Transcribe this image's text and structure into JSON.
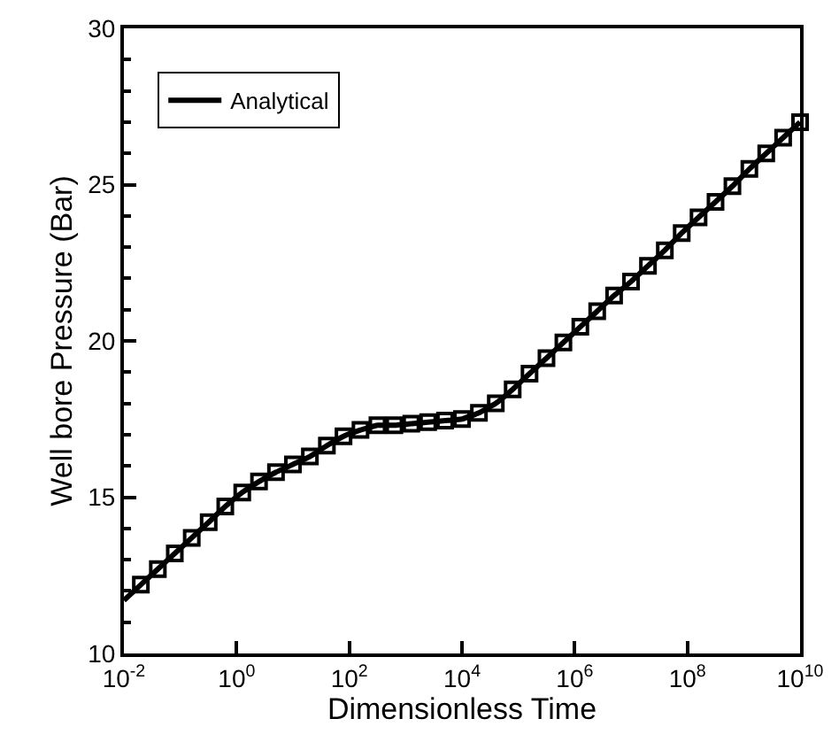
{
  "chart_data": {
    "type": "line",
    "xlabel": "Dimensionless Time",
    "ylabel": "Well bore Pressure (Bar)",
    "log": "x",
    "xlim": [
      0.01,
      10000000000
    ],
    "ylim": [
      10,
      30
    ],
    "xticks": [
      {
        "value": 0.01,
        "label": "10$^{-2}$"
      },
      {
        "value": 1,
        "label": "10$^{0}$"
      },
      {
        "value": 100,
        "label": "10$^{2}$"
      },
      {
        "value": 10000,
        "label": "10$^{4}$"
      },
      {
        "value": 1000000,
        "label": "10$^{6}$"
      },
      {
        "value": 100000000,
        "label": "10$^{8}$"
      },
      {
        "value": 10000000000,
        "label": "10$^{10}$"
      }
    ],
    "yticks": [
      10,
      15,
      20,
      25,
      30
    ],
    "legend": "top left",
    "series": [
      {
        "name": "Analytical",
        "color": "#000000",
        "marker": "none",
        "line_style": "solid",
        "x": [
          0.01,
          0.02,
          0.04,
          0.08,
          0.16,
          0.32,
          0.63,
          1.26,
          2.5,
          5,
          10,
          20,
          40,
          79,
          158,
          316,
          631,
          1260,
          2510,
          5010,
          10000,
          20000,
          39800,
          79400,
          158000,
          316000,
          631000,
          1260000,
          2510000,
          5010000,
          10000000,
          20000000,
          39800000,
          79400000,
          158000000,
          316000000,
          631000000,
          1260000000,
          2510000000,
          5010000000,
          10000000000
        ],
        "values": [
          11.7,
          12.2,
          12.7,
          13.2,
          13.7,
          14.2,
          14.7,
          15.15,
          15.5,
          15.8,
          16.05,
          16.3,
          16.65,
          16.95,
          17.15,
          17.3,
          17.3,
          17.35,
          17.4,
          17.45,
          17.5,
          17.7,
          18.0,
          18.45,
          18.95,
          19.45,
          19.95,
          20.45,
          20.95,
          21.45,
          21.9,
          22.4,
          22.9,
          23.45,
          23.95,
          24.45,
          24.95,
          25.5,
          26.0,
          26.5,
          27.0
        ]
      },
      {
        "type": "scatter",
        "color": "#000000",
        "marker": "square",
        "x": [
          0.02,
          0.04,
          0.08,
          0.16,
          0.32,
          0.63,
          1.26,
          2.5,
          5,
          10,
          20,
          40,
          79,
          158,
          316,
          631,
          1260,
          2510,
          5010,
          10000,
          20000,
          39800,
          79400,
          158000,
          316000,
          631000,
          1260000,
          2510000,
          5010000,
          10000000,
          20000000,
          39800000,
          79400000,
          158000000,
          316000000,
          631000000,
          1260000000,
          2510000000,
          5010000000,
          10000000000
        ],
        "values": [
          12.2,
          12.7,
          13.2,
          13.7,
          14.2,
          14.7,
          15.15,
          15.5,
          15.8,
          16.05,
          16.3,
          16.65,
          16.95,
          17.15,
          17.3,
          17.3,
          17.35,
          17.4,
          17.45,
          17.5,
          17.7,
          18.0,
          18.45,
          18.95,
          19.45,
          19.95,
          20.45,
          20.95,
          21.45,
          21.9,
          22.4,
          22.9,
          23.45,
          23.95,
          24.45,
          24.95,
          25.5,
          26.0,
          26.5,
          27.0
        ]
      }
    ]
  }
}
